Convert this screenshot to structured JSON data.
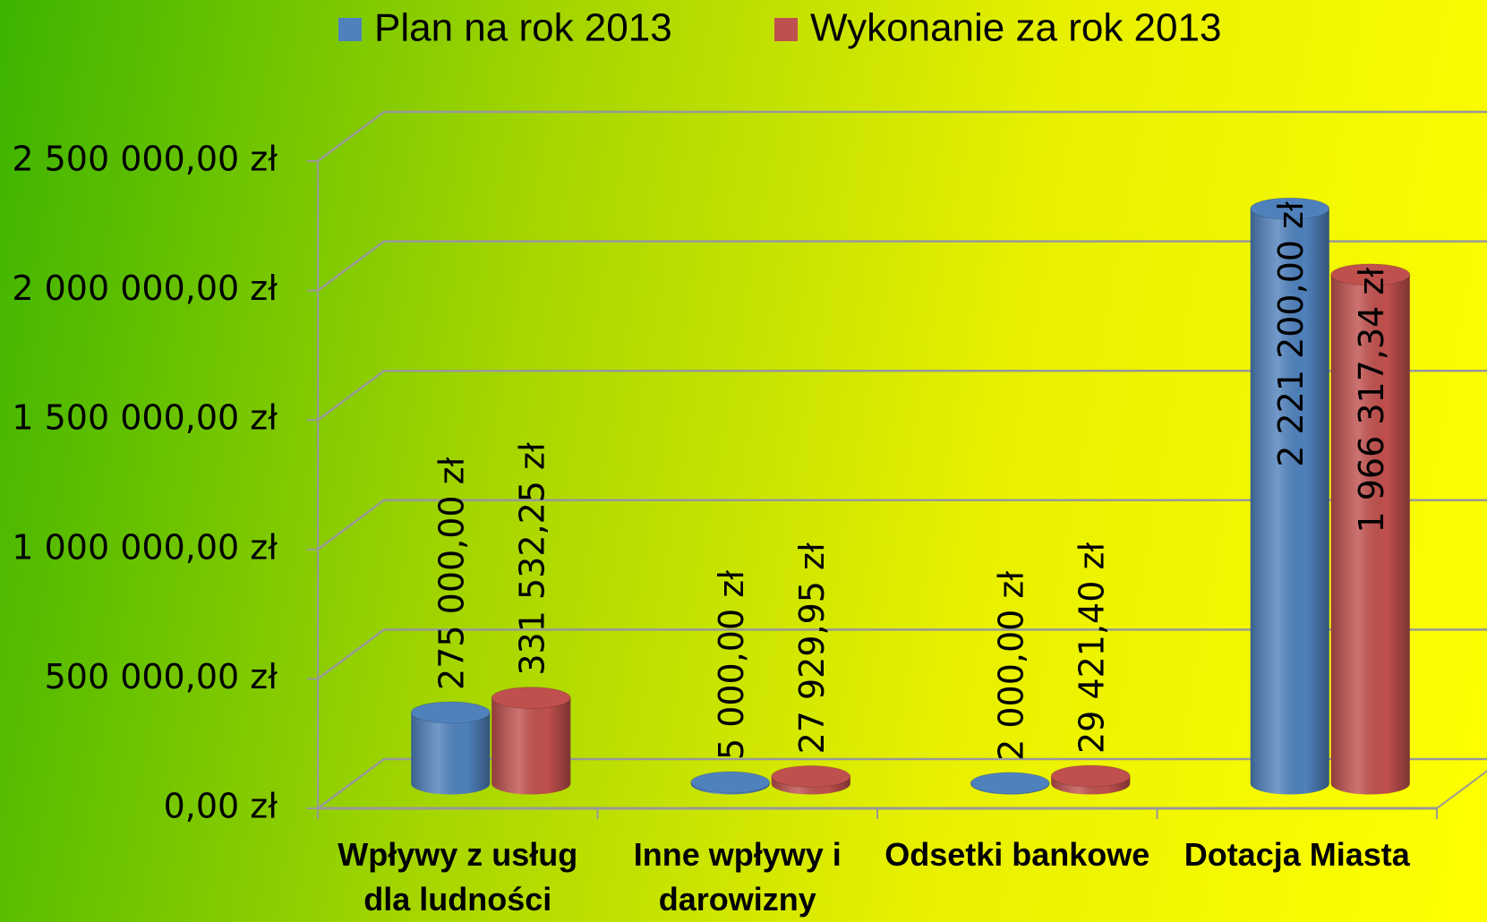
{
  "chart_data": {
    "type": "bar3d",
    "categories": [
      "Wpływy z usług dla ludności",
      "Inne wpływy i darowizny",
      "Odsetki bankowe",
      "Dotacja Miasta"
    ],
    "series": [
      {
        "name": "Plan na rok 2013",
        "color": "#4f81bd",
        "values": [
          275000,
          5000,
          2000,
          2221200
        ],
        "value_labels": [
          "275 000,00 zł",
          "5 000,00 zł",
          "2 000,00 zł",
          "2 221 200,00 zł"
        ]
      },
      {
        "name": "Wykonanie za rok 2013",
        "color": "#c0504d",
        "values": [
          331532.25,
          27929.95,
          29421.4,
          1966317.34
        ],
        "value_labels": [
          "331 532,25 zł",
          "27 929,95 zł",
          "29 421,40 zł",
          "1 966 317,34 zł"
        ]
      }
    ],
    "ylim": [
      0,
      2500000
    ],
    "yticks": [
      {
        "value": 0,
        "label": "0,00 zł"
      },
      {
        "value": 500000,
        "label": "500 000,00 zł"
      },
      {
        "value": 1000000,
        "label": "1 000 000,00 zł"
      },
      {
        "value": 1500000,
        "label": "1 500 000,00 zł"
      },
      {
        "value": 2000000,
        "label": "2 000 000,00 zł"
      },
      {
        "value": 2500000,
        "label": "2 500 000,00 zł"
      }
    ],
    "grid": true,
    "legend": "top"
  }
}
